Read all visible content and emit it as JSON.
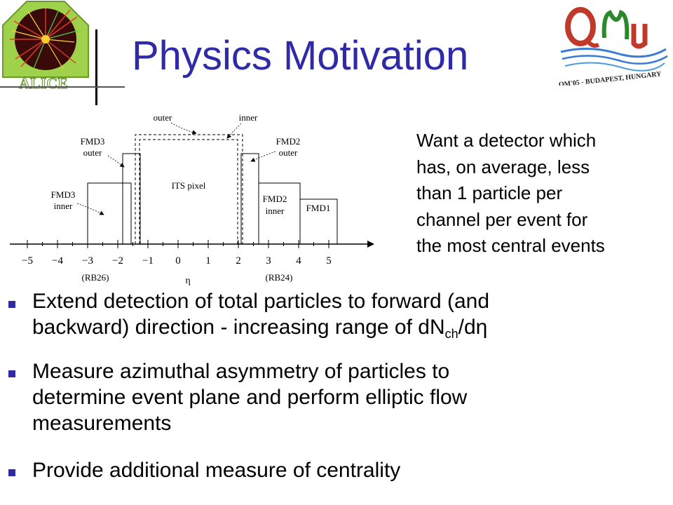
{
  "title": "Physics Motivation",
  "logos": {
    "alice_text": "ALICE",
    "qm_caption": "QM'05 - BUDAPEST, HUNGARY"
  },
  "diagram": {
    "labels": {
      "outer": "outer",
      "inner": "inner",
      "fmd3_outer": [
        "FMD3",
        "outer"
      ],
      "fmd3_inner": [
        "FMD3",
        "inner"
      ],
      "fmd2_outer": [
        "FMD2",
        "outer"
      ],
      "fmd2_inner": [
        "FMD2",
        "inner"
      ],
      "its_pixel": "ITS pixel",
      "fmd1": "FMD1",
      "rb26": "(RB26)",
      "rb24": "(RB24)",
      "axis_label": "η"
    },
    "ticks": [
      "−5",
      "−4",
      "−3",
      "−2",
      "−1",
      "0",
      "1",
      "2",
      "3",
      "4",
      "5"
    ]
  },
  "side_note": [
    "Want a detector which",
    "has, on average, less",
    "than 1 particle per",
    "channel per event for",
    "the most central events"
  ],
  "bullets": {
    "b1_line1": "Extend detection of total particles to forward (and",
    "b1_line2_pre": "backward) direction - increasing range of dN",
    "b1_sub": "ch",
    "b1_line2_post": "/dη",
    "b2_line1": "Measure azimuthal asymmetry of particles to",
    "b2_line2": "determine event plane and perform elliptic flow",
    "b2_line3": "measurements",
    "b3_line1": "Provide additional measure of centrality"
  },
  "colors": {
    "title": "#2e2aa8",
    "bullet": "#2e2aa8",
    "alice_green": "#9fd24a",
    "qm_red": "#c0392b",
    "qm_blue": "#3a7bd5"
  }
}
